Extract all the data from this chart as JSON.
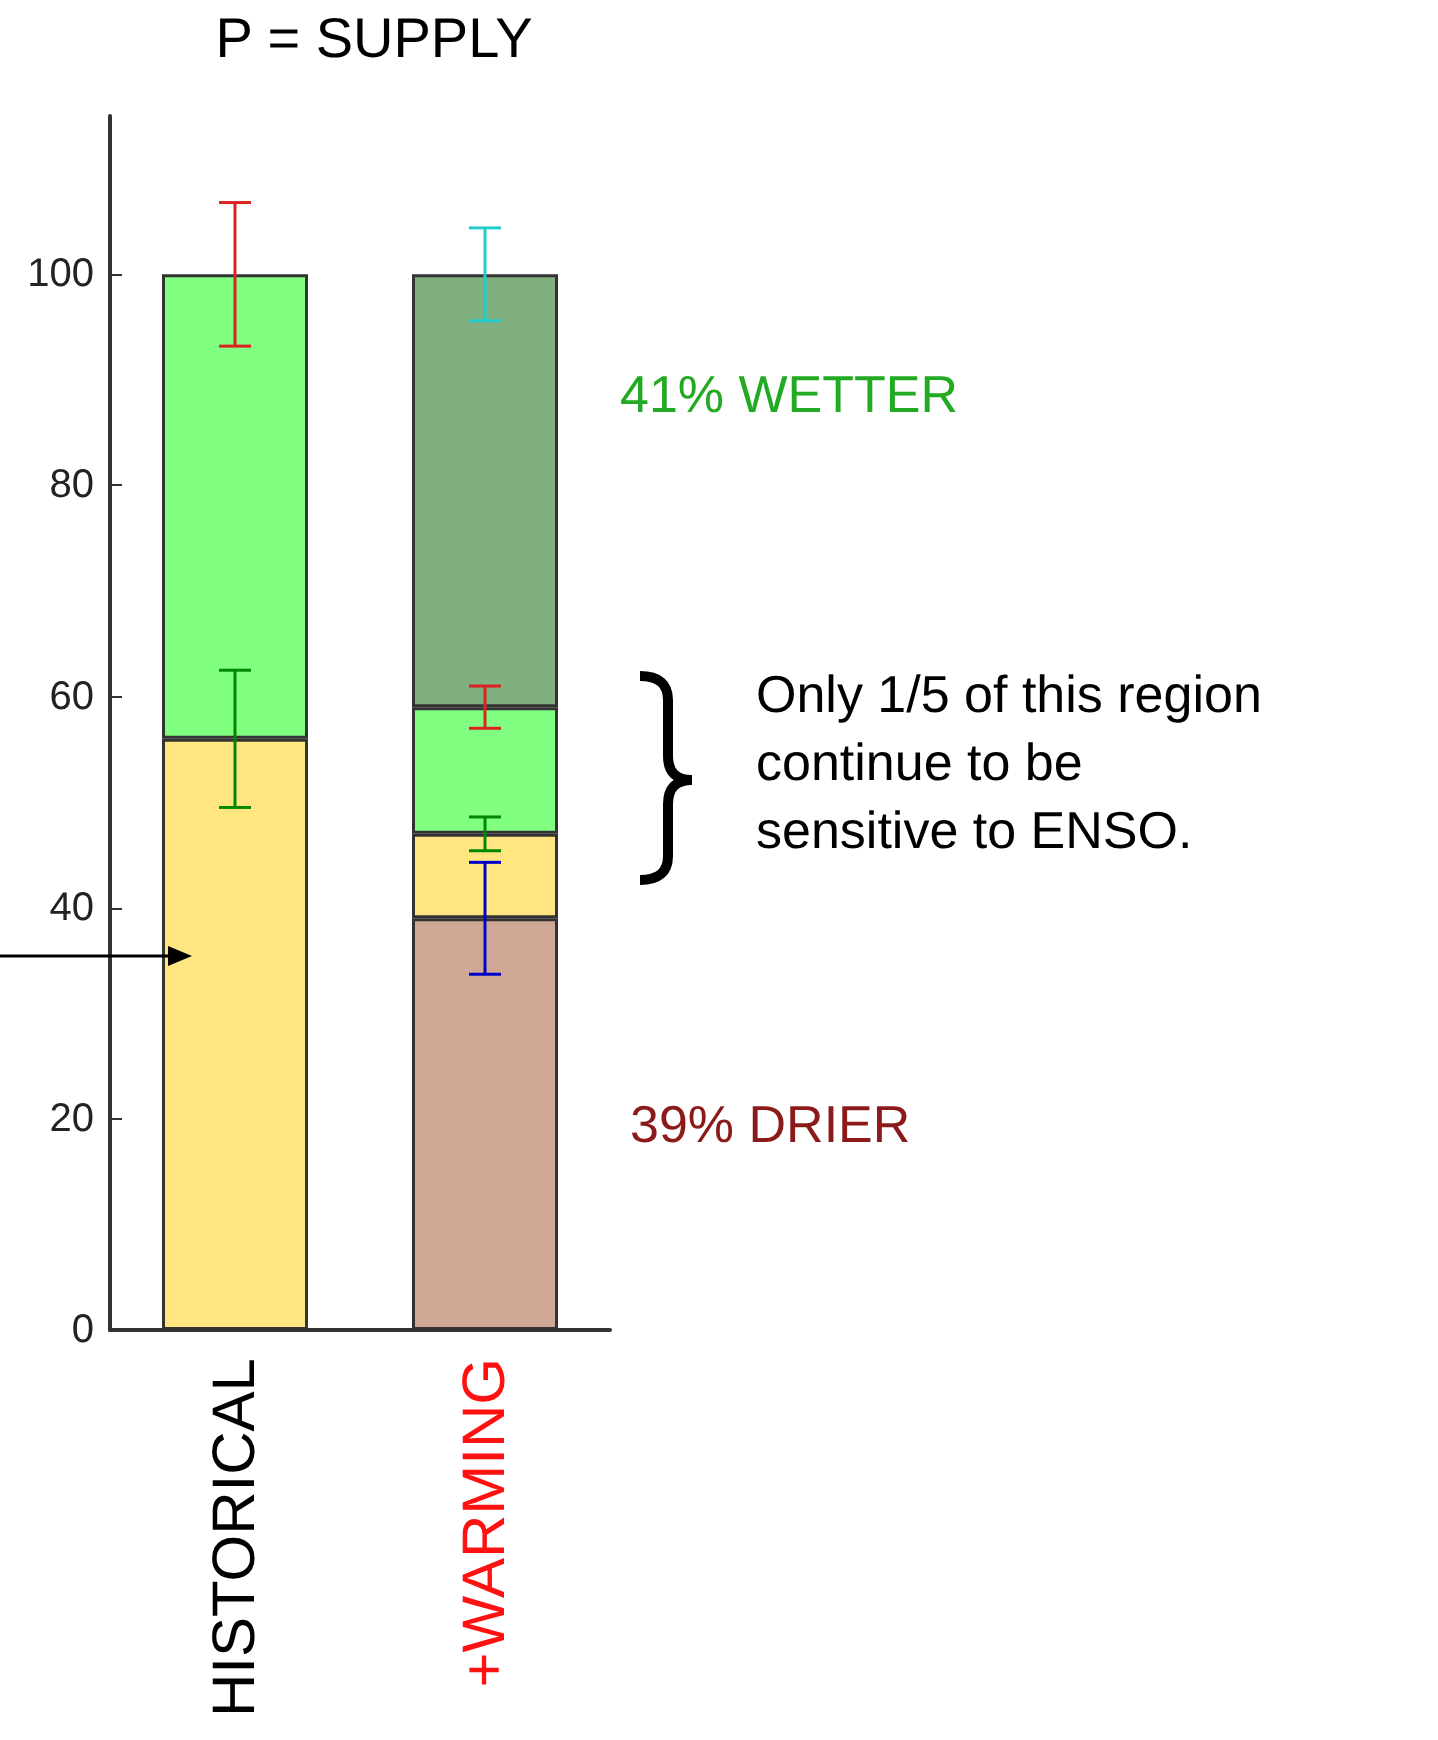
{
  "chart_data": {
    "type": "bar",
    "title": "P = SUPPLY",
    "categories": [
      "HISTORICAL",
      "+WARMING"
    ],
    "stacked": true,
    "series": [
      {
        "color": "#cfa996",
        "values": [
          null,
          39
        ],
        "errors": [
          null,
          5.3
        ]
      },
      {
        "color": "#ffe680",
        "values": [
          56,
          8
        ],
        "errors": [
          6.5,
          1.6
        ]
      },
      {
        "color": "#80ff80",
        "values": [
          44,
          12
        ],
        "errors": [
          6.8,
          2
        ]
      },
      {
        "color": "#80b080",
        "values": [
          null,
          41
        ],
        "errors": [
          null,
          4.4
        ]
      }
    ],
    "ylim": [
      0,
      115
    ],
    "yticks": [
      0,
      20,
      40,
      60,
      80,
      100
    ],
    "annotations": [
      "41% WETTER",
      "Only 1/5 of this region continue to be sensitive to ENSO.",
      "39% DRIER"
    ]
  }
}
